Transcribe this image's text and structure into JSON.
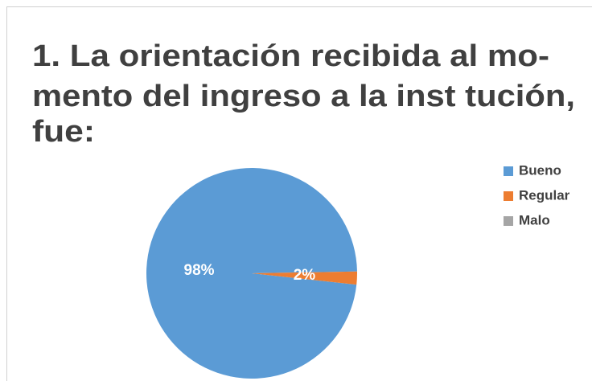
{
  "chart_data": {
    "type": "pie",
    "title": [
      "1. La orientación recibida al mo-",
      "mento del ingreso a la inst tución,",
      "fue:"
    ],
    "categories": [
      "Bueno",
      "Regular",
      "Malo"
    ],
    "values": [
      98,
      2,
      0
    ],
    "value_labels": [
      "98%",
      "2%",
      null
    ],
    "colors": [
      "#5b9bd5",
      "#ed7d31",
      "#a5a5a5"
    ],
    "legend": "right"
  }
}
